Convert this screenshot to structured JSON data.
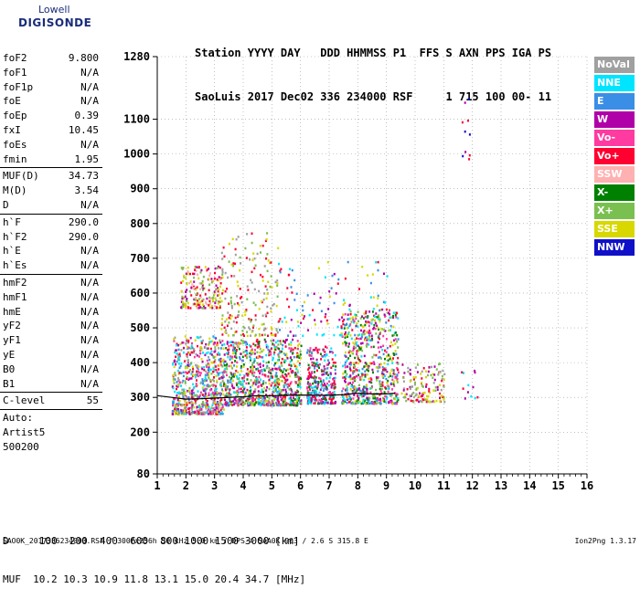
{
  "logo": {
    "line1": "Lowell",
    "line2": "DIGISONDE"
  },
  "header": {
    "line1": "Station YYYY DAY   DDD HHMMSS P1  FFS S AXN PPS IGA PS",
    "line2": "SaoLuis 2017 Dec02 336 234000 RSF     1 715 100 00- 11"
  },
  "params": {
    "group1": [
      {
        "label": "foF2",
        "value": "9.800"
      },
      {
        "label": "foF1",
        "value": "N/A"
      },
      {
        "label": "foF1p",
        "value": "N/A"
      },
      {
        "label": "foE",
        "value": "N/A"
      },
      {
        "label": "foEp",
        "value": "0.39"
      },
      {
        "label": "fxI",
        "value": "10.45"
      },
      {
        "label": "foEs",
        "value": "N/A"
      },
      {
        "label": "fmin",
        "value": "1.95"
      }
    ],
    "group2": [
      {
        "label": "MUF(D)",
        "value": "34.73"
      },
      {
        "label": "M(D)",
        "value": "3.54"
      },
      {
        "label": "D",
        "value": "N/A"
      }
    ],
    "group3": [
      {
        "label": "h`F",
        "value": "290.0"
      },
      {
        "label": "h`F2",
        "value": "290.0"
      },
      {
        "label": "h`E",
        "value": "N/A"
      },
      {
        "label": "h`Es",
        "value": "N/A"
      }
    ],
    "group4": [
      {
        "label": "hmF2",
        "value": "N/A"
      },
      {
        "label": "hmF1",
        "value": "N/A"
      },
      {
        "label": "hmE",
        "value": "N/A"
      },
      {
        "label": "yF2",
        "value": "N/A"
      },
      {
        "label": "yF1",
        "value": "N/A"
      },
      {
        "label": "yE",
        "value": "N/A"
      },
      {
        "label": "B0",
        "value": "N/A"
      },
      {
        "label": "B1",
        "value": "N/A"
      }
    ],
    "group5": [
      {
        "label": "C-level",
        "value": "55"
      }
    ],
    "auto_lines": [
      "Auto:",
      "Artist5",
      "500200"
    ]
  },
  "legend": [
    {
      "label": "NoVal",
      "color": "#a0a0a0"
    },
    {
      "label": "NNE",
      "color": "#00e5ff"
    },
    {
      "label": "E",
      "color": "#3a8ee6"
    },
    {
      "label": "W",
      "color": "#b000a8"
    },
    {
      "label": "Vo-",
      "color": "#ff3aa0"
    },
    {
      "label": "Vo+",
      "color": "#ff0030"
    },
    {
      "label": "SSW",
      "color": "#ffb0b0"
    },
    {
      "label": "X-",
      "color": "#008000"
    },
    {
      "label": "X+",
      "color": "#7ac050"
    },
    {
      "label": "SSE",
      "color": "#d8d800"
    },
    {
      "label": "NNW",
      "color": "#1010c8"
    }
  ],
  "footer": {
    "line1": "D     100  200  400  600  800 1000 1500 3000 [km]",
    "line2": "MUF  10.2 10.3 10.9 11.8 13.1 15.0 20.4 34.7 [MHz]",
    "line3": "SAO0K_2017336234000.RSF / 300fx256h 50 kHz 5.0 km / DPS-4 SAA0K 903 / 2.6 S 315.8 E",
    "version": "Ion2Png 1.3.17"
  },
  "chart_data": {
    "type": "scatter",
    "xlim": [
      1,
      16
    ],
    "ylim": [
      80,
      1280
    ],
    "x_ticks": [
      1,
      2,
      3,
      4,
      5,
      6,
      7,
      8,
      9,
      10,
      11,
      12,
      13,
      14,
      15,
      16
    ],
    "y_ticks": [
      80,
      200,
      300,
      400,
      500,
      600,
      700,
      800,
      900,
      1000,
      1100,
      1280
    ],
    "grid": "dotted",
    "trace": {
      "x": [
        1.0,
        1.5,
        2.0,
        2.5,
        3.0,
        3.5,
        4.0,
        4.5,
        5.0,
        5.5,
        6.0,
        6.5,
        7.0,
        7.5,
        8.0,
        8.5,
        9.0,
        9.3
      ],
      "y": [
        305,
        300,
        295,
        296,
        298,
        300,
        302,
        305,
        305,
        306,
        307,
        306,
        306,
        308,
        312,
        310,
        310,
        312
      ]
    },
    "clusters": [
      {
        "x": [
          1.5,
          3.3
        ],
        "y": [
          255,
          480
        ],
        "n": 700,
        "colors": [
          "Vo+",
          "W",
          "NNE",
          "E",
          "Vo-",
          "NoVal",
          "SSE",
          "X+"
        ]
      },
      {
        "x": [
          3.3,
          6.0
        ],
        "y": [
          280,
          470
        ],
        "n": 900,
        "colors": [
          "Vo+",
          "W",
          "Vo-",
          "E",
          "NNE",
          "SSE",
          "X-",
          "X+"
        ]
      },
      {
        "x": [
          6.2,
          7.2
        ],
        "y": [
          285,
          450
        ],
        "n": 300,
        "colors": [
          "Vo+",
          "W",
          "Vo-",
          "E",
          "NNE",
          "X-"
        ]
      },
      {
        "x": [
          7.4,
          9.4
        ],
        "y": [
          285,
          560
        ],
        "n": 650,
        "colors": [
          "Vo+",
          "W",
          "Vo-",
          "E",
          "NNE",
          "SSE",
          "X-",
          "X+"
        ]
      },
      {
        "x": [
          9.5,
          11.0
        ],
        "y": [
          290,
          400
        ],
        "n": 140,
        "colors": [
          "Vo+",
          "W",
          "SSE",
          "X+",
          "NoVal"
        ]
      },
      {
        "x": [
          1.8,
          3.2
        ],
        "y": [
          560,
          680
        ],
        "n": 200,
        "colors": [
          "SSE",
          "X+",
          "Vo+",
          "W",
          "SSW"
        ]
      },
      {
        "x": [
          3.2,
          5.2
        ],
        "y": [
          480,
          780
        ],
        "n": 200,
        "colors": [
          "SSE",
          "X+",
          "Vo+",
          "NoVal"
        ]
      },
      {
        "x": [
          5.2,
          9.0
        ],
        "y": [
          480,
          700
        ],
        "n": 120,
        "colors": [
          "Vo+",
          "W",
          "SSE",
          "E",
          "NNE"
        ]
      },
      {
        "x": [
          11.6,
          11.9
        ],
        "y": [
          980,
          1250
        ],
        "n": 10,
        "colors": [
          "Vo+",
          "W",
          "NNW"
        ]
      },
      {
        "x": [
          11.5,
          12.2
        ],
        "y": [
          300,
          400
        ],
        "n": 12,
        "colors": [
          "Vo+",
          "W",
          "NNE"
        ]
      }
    ]
  }
}
